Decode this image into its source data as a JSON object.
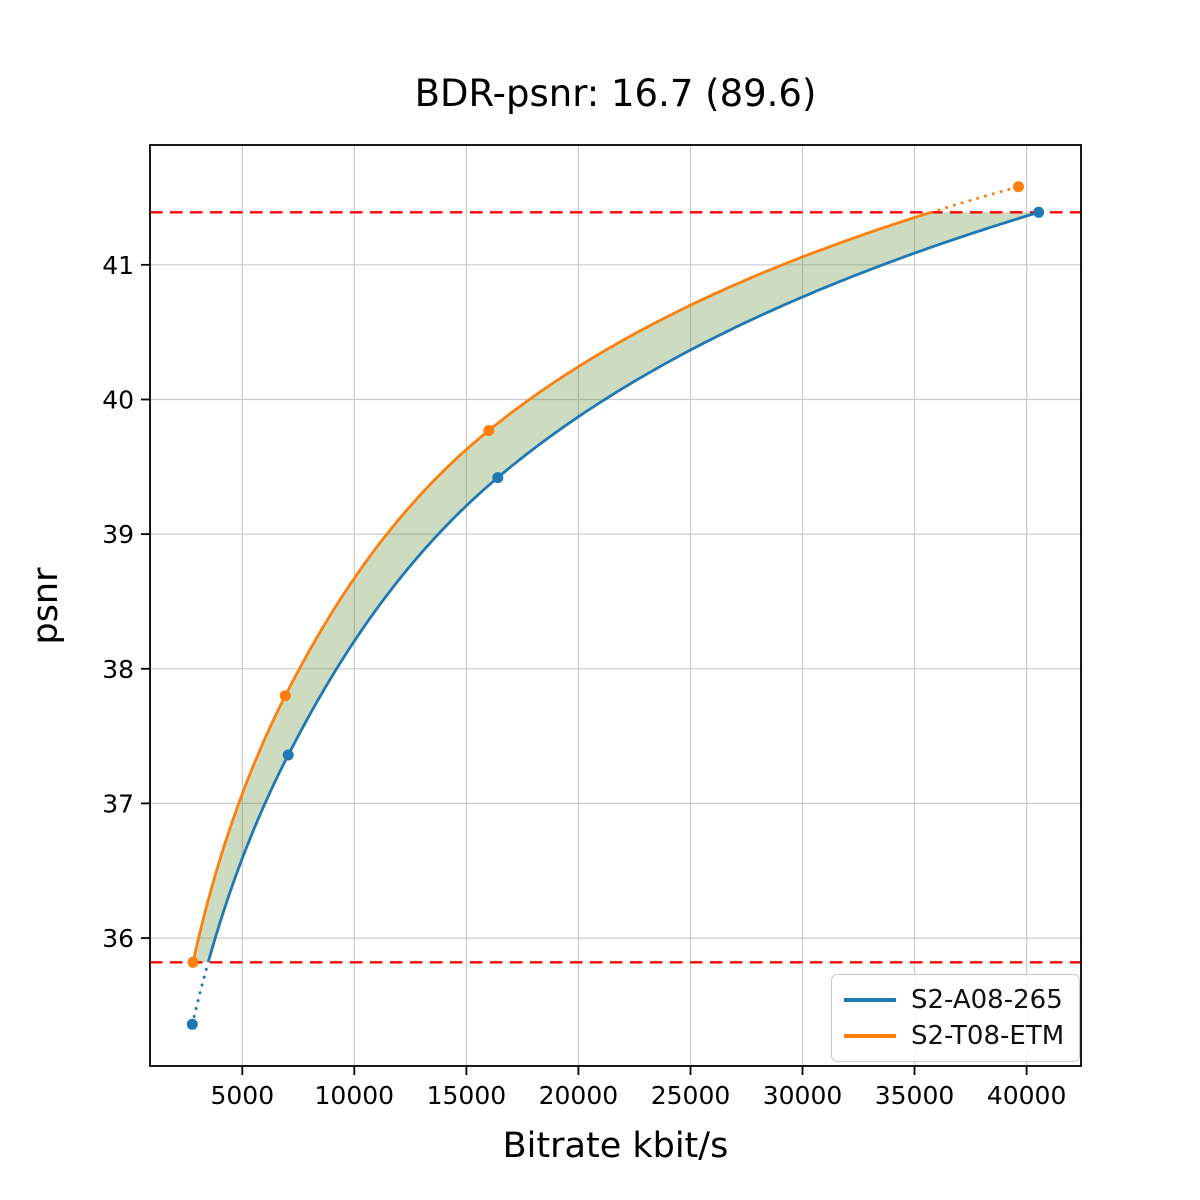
{
  "chart_data": {
    "type": "line",
    "title": "BDR-psnr: 16.7 (89.6)",
    "xlabel": "Bitrate kbit/s",
    "ylabel": "psnr",
    "xlim": [
      880,
      42430
    ],
    "ylim": [
      35.05,
      41.89
    ],
    "xticks": [
      5000,
      10000,
      15000,
      20000,
      25000,
      30000,
      35000,
      40000
    ],
    "yticks": [
      36,
      37,
      38,
      39,
      40,
      41
    ],
    "grid": true,
    "grid_color": "#cbcbcb",
    "legend_position": "lower right",
    "interpolation": "pchip-on-log-bitrate",
    "extrapolation_style": "dotted",
    "series": [
      {
        "name": "S2-A08-265",
        "color": "#1f77b4",
        "x": [
          2770,
          7050,
          16400,
          40540
        ],
        "y": [
          35.36,
          37.36,
          39.42,
          41.39
        ]
      },
      {
        "name": "S2-T08-ETM",
        "color": "#ff7f0e",
        "x": [
          2800,
          6920,
          16000,
          39640
        ],
        "y": [
          35.82,
          37.8,
          39.77,
          41.58
        ]
      }
    ],
    "reference_lines": {
      "color": "#ff0000",
      "style": "dashed",
      "values": [
        35.82,
        41.39
      ]
    },
    "shaded_region": {
      "color": "#5a8c32",
      "opacity": 0.3,
      "between": [
        "S2-T08-ETM",
        "S2-A08-265"
      ],
      "psnr_range": [
        35.82,
        41.39
      ]
    }
  }
}
